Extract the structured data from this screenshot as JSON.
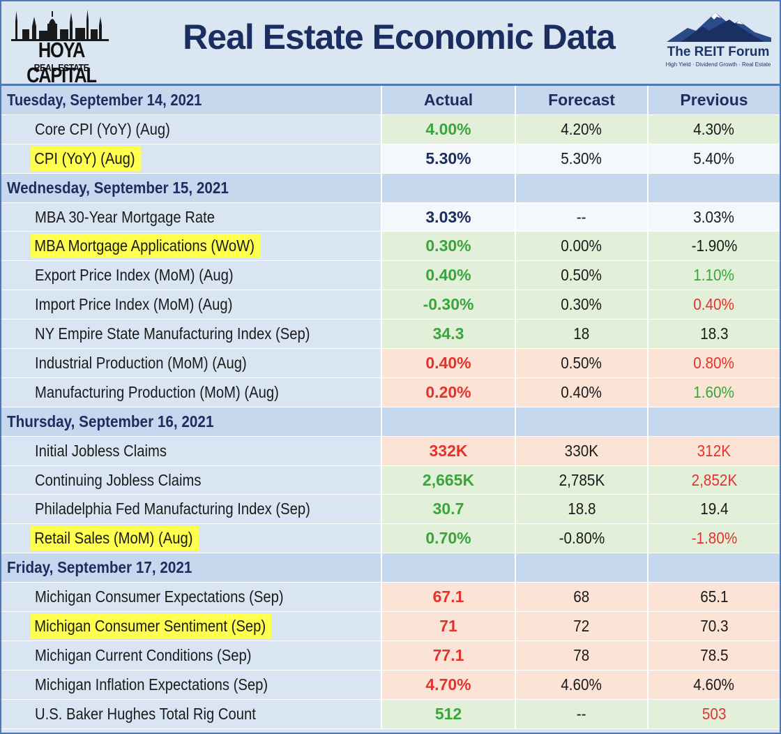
{
  "header": {
    "title": "Real Estate Economic Data",
    "left_logo": {
      "name": "HOYA CAPITAL",
      "sub": "REAL ESTATE"
    },
    "right_logo": {
      "name": "The REIT Forum",
      "tagline": "High Yield · Dividend Growth · Real Estate"
    }
  },
  "columns": {
    "actual": "Actual",
    "forecast": "Forecast",
    "previous": "Previous"
  },
  "colors": {
    "good": "#3aa53a",
    "bad": "#e5322c",
    "neutral": "#1c2d60",
    "highlight": "#ffff4d"
  },
  "sections": [
    {
      "date": "Tuesday, September 14, 2021",
      "rows": [
        {
          "name": "Core CPI (YoY) (Aug)",
          "actual": "4.00%",
          "forecast": "4.20%",
          "previous": "4.30%"
        },
        {
          "name": "CPI (YoY) (Aug)",
          "actual": "5.30%",
          "forecast": "5.30%",
          "previous": "5.40%"
        }
      ]
    },
    {
      "date": "Wednesday, September 15, 2021",
      "rows": [
        {
          "name": "MBA 30-Year Mortgage Rate",
          "actual": "3.03%",
          "forecast": "--",
          "previous": "3.03%"
        },
        {
          "name": "MBA Mortgage Applications (WoW)",
          "actual": "0.30%",
          "forecast": "0.00%",
          "previous": "-1.90%"
        },
        {
          "name": "Export Price Index (MoM) (Aug)",
          "actual": "0.40%",
          "forecast": "0.50%",
          "previous": "1.10%"
        },
        {
          "name": "Import Price Index (MoM) (Aug)",
          "actual": "-0.30%",
          "forecast": "0.30%",
          "previous": "0.40%"
        },
        {
          "name": "NY Empire State Manufacturing Index (Sep)",
          "actual": "34.3",
          "forecast": "18",
          "previous": "18.3"
        },
        {
          "name": "Industrial Production (MoM) (Aug)",
          "actual": "0.40%",
          "forecast": "0.50%",
          "previous": "0.80%"
        },
        {
          "name": "Manufacturing Production (MoM) (Aug)",
          "actual": "0.20%",
          "forecast": "0.40%",
          "previous": "1.60%"
        }
      ]
    },
    {
      "date": "Thursday, September 16, 2021",
      "rows": [
        {
          "name": "Initial Jobless Claims",
          "actual": "332K",
          "forecast": "330K",
          "previous": "312K"
        },
        {
          "name": "Continuing Jobless Claims",
          "actual": "2,665K",
          "forecast": "2,785K",
          "previous": "2,852K"
        },
        {
          "name": "Philadelphia Fed Manufacturing Index (Sep)",
          "actual": "30.7",
          "forecast": "18.8",
          "previous": "19.4"
        },
        {
          "name": "Retail Sales (MoM) (Aug)",
          "actual": "0.70%",
          "forecast": "-0.80%",
          "previous": "-1.80%"
        }
      ]
    },
    {
      "date": "Friday, September 17, 2021",
      "rows": [
        {
          "name": "Michigan Consumer Expectations (Sep)",
          "actual": "67.1",
          "forecast": "68",
          "previous": "65.1"
        },
        {
          "name": "Michigan Consumer Sentiment (Sep)",
          "actual": "71",
          "forecast": "72",
          "previous": "70.3"
        },
        {
          "name": "Michigan Current Conditions (Sep)",
          "actual": "77.1",
          "forecast": "78",
          "previous": "78.5"
        },
        {
          "name": "Michigan Inflation Expectations (Sep)",
          "actual": "4.70%",
          "forecast": "4.60%",
          "previous": "4.60%"
        },
        {
          "name": "U.S. Baker Hughes Total Rig Count",
          "actual": "512",
          "forecast": "--",
          "previous": "503"
        }
      ]
    }
  ]
}
